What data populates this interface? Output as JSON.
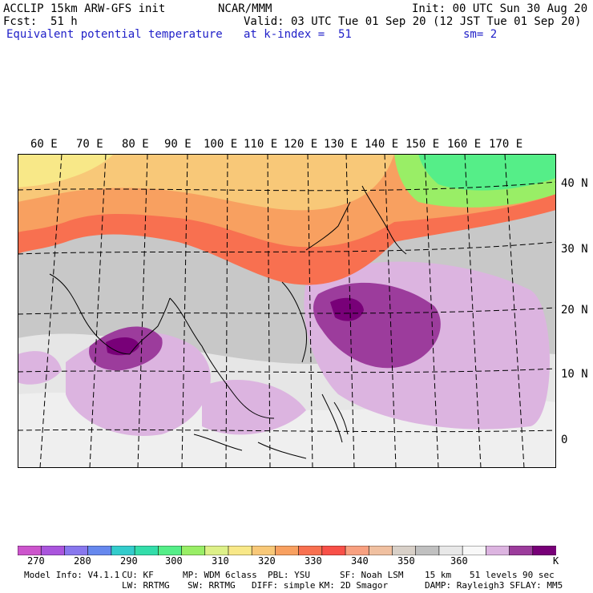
{
  "header": {
    "model": "ACCLIP 15km ARW-GFS init",
    "center": "NCAR/MMM",
    "init": "Init: 00 UTC Sun 30 Aug 20",
    "fcst": "Fcst:  51 h",
    "valid": "Valid: 03 UTC Tue 01 Sep 20 (12 JST Tue 01 Sep 20)",
    "field": "Equivalent potential temperature",
    "level": "at k-index =  51",
    "smooth": "sm= 2"
  },
  "map": {
    "lon_labels": [
      "60 E",
      "70 E",
      "80 E",
      "90 E",
      "100 E",
      "110 E",
      "120 E",
      "130 E",
      "140 E",
      "150 E",
      "160 E",
      "170 E"
    ],
    "lat_labels": [
      "40 N",
      "30 N",
      "20 N",
      "10 N",
      "0"
    ]
  },
  "colorbar": {
    "colors": [
      "#cc55cc",
      "#aa55dd",
      "#8877ee",
      "#6688ee",
      "#33cccc",
      "#33ddaa",
      "#55ee88",
      "#99ee66",
      "#ddf088",
      "#f8e888",
      "#f8c878",
      "#f8a060",
      "#f87050",
      "#f85048",
      "#f8a080",
      "#f0c0a0",
      "#d8d0c8",
      "#c0c0c0",
      "#e8e8e8",
      "#f8f8f8",
      "#dcb4e0",
      "#9c3c9c",
      "#780078"
    ],
    "labels": [
      "270",
      "280",
      "290",
      "300",
      "310",
      "320",
      "330",
      "340",
      "350",
      "360"
    ],
    "unit": "K"
  },
  "footer": {
    "line1": [
      "Model Info: V4.1.1",
      "CU: KF",
      "MP: WDM 6class",
      "PBL: YSU",
      "SF: Noah LSM",
      "15 km",
      "51 levels",
      "90 sec"
    ],
    "line2": [
      "LW: RRTMG",
      "SW: RRTMG",
      "DIFF: simple",
      "KM: 2D Smagor",
      "DAMP: Rayleigh3",
      "SFLAY: MM5"
    ]
  }
}
